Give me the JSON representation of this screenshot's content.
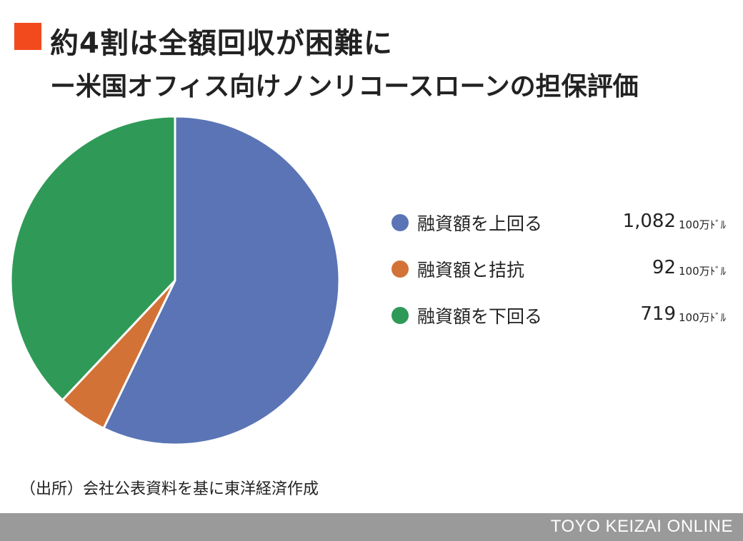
{
  "colors": {
    "title_marker": "#f24a1c",
    "text": "#222222",
    "footer_bg": "#9a9a9a",
    "footer_text": "#ffffff"
  },
  "header": {
    "title": "約4割は全額回収が困難に",
    "subtitle": "ー米国オフィス向けノンリコースローンの担保評価"
  },
  "chart_data": {
    "type": "pie",
    "unit": "100万ﾄﾞﾙ",
    "categories": [
      "融資額を上回る",
      "融資額と拮抗",
      "融資額を下回る"
    ],
    "values": [
      1082,
      92,
      719
    ],
    "display_values": [
      "1,082",
      "92",
      "719"
    ],
    "colors": [
      "#5a74b5",
      "#d37237",
      "#2f9a57"
    ],
    "start_angle": "12 o'clock",
    "direction": "clockwise",
    "legend_position": "right",
    "legend": [
      {
        "label": "融資額を上回る",
        "value": "1,082",
        "unit": "100万ﾄﾞﾙ",
        "color": "#5a74b5"
      },
      {
        "label": "融資額と拮抗",
        "value": "92",
        "unit": "100万ﾄﾞﾙ",
        "color": "#d37237"
      },
      {
        "label": "融資額を下回る",
        "value": "719",
        "unit": "100万ﾄﾞﾙ",
        "color": "#2f9a57"
      }
    ]
  },
  "source": "（出所）会社公表資料を基に東洋経済作成",
  "footer": {
    "brand": "TOYO KEIZAI ONLINE"
  }
}
